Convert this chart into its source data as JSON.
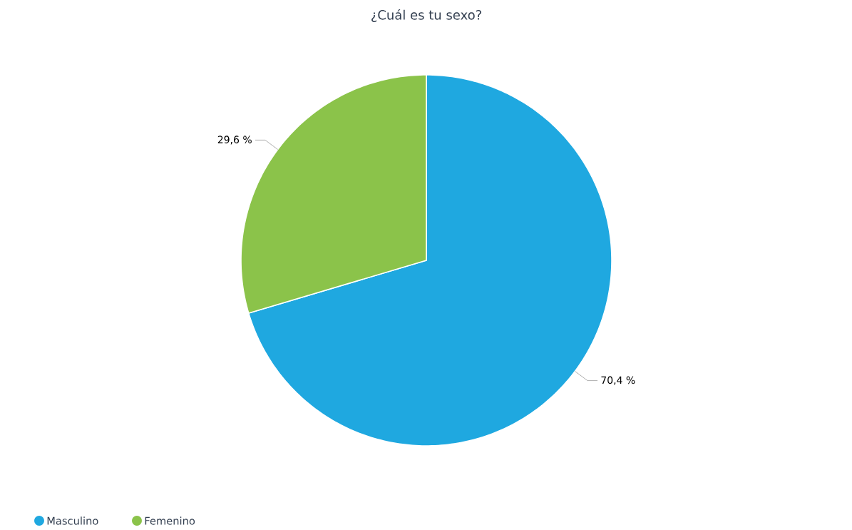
{
  "chart_data": {
    "type": "pie",
    "title": "¿Cuál es tu sexo?",
    "categories": [
      "Masculino",
      "Femenino"
    ],
    "values": [
      70.4,
      29.6
    ],
    "colors": [
      "#1fa8e0",
      "#8bc34a"
    ],
    "value_labels": [
      "70,4 %",
      "29,6 %"
    ],
    "legend": "bottom left"
  }
}
